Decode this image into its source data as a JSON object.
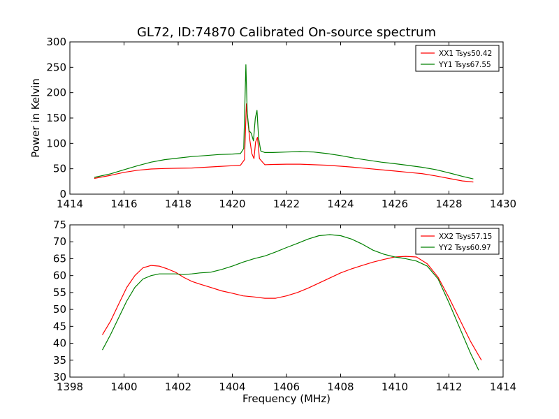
{
  "figure": {
    "title": "GL72, ID:74870 Calibrated On-source spectrum"
  },
  "colors": {
    "xx": "#ff0000",
    "yy": "#008000"
  },
  "chart_data": [
    {
      "type": "line",
      "title": "GL72, ID:74870 Calibrated On-source spectrum",
      "xlabel": "",
      "ylabel": "Power in Kelvin",
      "xlim": [
        1414,
        1430
      ],
      "ylim": [
        0,
        300
      ],
      "xticks": [
        "1414",
        "1416",
        "1418",
        "1420",
        "1422",
        "1424",
        "1426",
        "1428",
        "1430"
      ],
      "yticks": [
        "0",
        "50",
        "100",
        "150",
        "200",
        "250",
        "300"
      ],
      "grid": false,
      "legend_position": "top-right",
      "series": [
        {
          "name": "XX1 Tsys50.42",
          "color": "#ff0000",
          "x": [
            1414.9,
            1415.5,
            1416,
            1416.5,
            1417,
            1417.5,
            1418,
            1418.5,
            1419,
            1419.5,
            1420,
            1420.3,
            1420.45,
            1420.52,
            1420.58,
            1420.65,
            1420.72,
            1420.8,
            1420.86,
            1420.93,
            1421.0,
            1421.2,
            1421.5,
            1422,
            1422.5,
            1423,
            1423.5,
            1424,
            1424.5,
            1425,
            1425.5,
            1426,
            1426.5,
            1427,
            1427.5,
            1428,
            1428.5,
            1428.9
          ],
          "y": [
            31,
            37,
            43,
            47,
            49.5,
            50.5,
            51,
            51.5,
            53,
            54.5,
            56,
            57,
            68,
            178,
            140,
            105,
            80,
            70,
            103,
            112,
            70,
            58,
            58.5,
            59,
            59,
            58,
            57,
            55,
            53,
            50.5,
            48,
            45.5,
            43,
            40.5,
            36,
            31,
            26,
            24
          ]
        },
        {
          "name": "YY1 Tsys67.55",
          "color": "#008000",
          "x": [
            1414.9,
            1415.5,
            1416,
            1416.5,
            1417,
            1417.5,
            1418,
            1418.5,
            1419,
            1419.5,
            1420,
            1420.3,
            1420.42,
            1420.5,
            1420.55,
            1420.62,
            1420.7,
            1420.78,
            1420.85,
            1420.91,
            1420.97,
            1421.05,
            1421.2,
            1421.5,
            1422,
            1422.5,
            1423,
            1423.5,
            1424,
            1424.5,
            1425,
            1425.5,
            1426,
            1426.5,
            1427,
            1427.5,
            1428,
            1428.5,
            1428.9
          ],
          "y": [
            33,
            40,
            48,
            56,
            63,
            68,
            71,
            74,
            76,
            78,
            79,
            80,
            90,
            255,
            160,
            125,
            120,
            105,
            150,
            165,
            110,
            85,
            82,
            82,
            83,
            84,
            83,
            80,
            76,
            71,
            67,
            63,
            60,
            56.5,
            53,
            48.5,
            42,
            35,
            30
          ]
        }
      ]
    },
    {
      "type": "line",
      "title": "",
      "xlabel": "Frequency (MHz)",
      "ylabel": "",
      "xlim": [
        1398,
        1414
      ],
      "ylim": [
        30,
        75
      ],
      "xticks": [
        "1398",
        "1400",
        "1402",
        "1404",
        "1406",
        "1408",
        "1410",
        "1412",
        "1414"
      ],
      "yticks": [
        "30",
        "35",
        "40",
        "45",
        "50",
        "55",
        "60",
        "65",
        "70",
        "75"
      ],
      "grid": false,
      "legend_position": "top-right",
      "series": [
        {
          "name": "XX2 Tsys57.15",
          "color": "#ff0000",
          "x": [
            1399.2,
            1399.5,
            1399.8,
            1400.1,
            1400.4,
            1400.7,
            1401.0,
            1401.3,
            1401.6,
            1401.9,
            1402.2,
            1402.5,
            1402.8,
            1403.2,
            1403.6,
            1404.0,
            1404.4,
            1404.8,
            1405.2,
            1405.6,
            1406.0,
            1406.4,
            1406.8,
            1407.2,
            1407.6,
            1408.0,
            1408.4,
            1408.8,
            1409.2,
            1409.6,
            1410.0,
            1410.4,
            1410.8,
            1411.2,
            1411.6,
            1412.0,
            1412.4,
            1412.8,
            1413.2
          ],
          "y": [
            42.5,
            46.5,
            51.5,
            56.5,
            60,
            62.3,
            63,
            62.8,
            62,
            61,
            59.5,
            58.3,
            57.5,
            56.5,
            55.5,
            54.8,
            54,
            53.7,
            53.3,
            53.3,
            54,
            55,
            56.3,
            57.8,
            59.3,
            60.8,
            62,
            63,
            64,
            64.8,
            65.5,
            65.7,
            65.5,
            63.5,
            59.5,
            53.5,
            47,
            40.5,
            35
          ]
        },
        {
          "name": "YY2 Tsys60.97",
          "color": "#008000",
          "x": [
            1399.2,
            1399.5,
            1399.8,
            1400.1,
            1400.4,
            1400.7,
            1401.0,
            1401.3,
            1401.6,
            1401.9,
            1402.2,
            1402.5,
            1402.8,
            1403.2,
            1403.6,
            1404.0,
            1404.4,
            1404.8,
            1405.2,
            1405.6,
            1406.0,
            1406.4,
            1406.8,
            1407.2,
            1407.6,
            1408.0,
            1408.4,
            1408.8,
            1409.2,
            1409.6,
            1410.0,
            1410.4,
            1410.8,
            1411.2,
            1411.6,
            1412.0,
            1412.4,
            1412.8,
            1413.1
          ],
          "y": [
            38,
            42.5,
            47.5,
            52.5,
            56.5,
            59,
            60,
            60.5,
            60.5,
            60.5,
            60.3,
            60.5,
            60.8,
            61,
            61.8,
            62.8,
            64,
            65,
            65.8,
            67,
            68.3,
            69.5,
            70.8,
            71.8,
            72.1,
            71.8,
            70.8,
            69.3,
            67.5,
            66.3,
            65.5,
            65,
            64.3,
            62.8,
            59,
            52,
            44.5,
            37,
            32
          ]
        }
      ]
    }
  ]
}
